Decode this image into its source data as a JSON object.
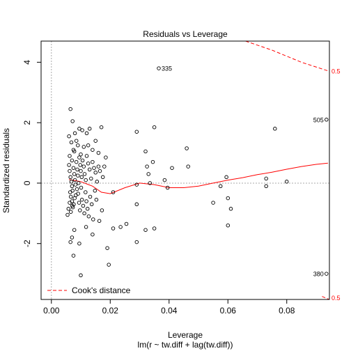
{
  "chart_data": {
    "type": "scatter",
    "title": "Residuals vs Leverage",
    "xlabel": "Leverage",
    "xlabel2": "lm(r ~ tw.diff + lag(tw.diff))",
    "ylabel": "Standardized residuals",
    "xlim": [
      -0.0035,
      0.0945
    ],
    "ylim": [
      -3.85,
      4.7
    ],
    "xticks": [
      0.0,
      0.02,
      0.04,
      0.06,
      0.08
    ],
    "xtick_labels": [
      "0.00",
      "0.02",
      "0.04",
      "0.06",
      "0.08"
    ],
    "yticks": [
      -2,
      0,
      2,
      4
    ],
    "ytick_labels": [
      "-2",
      "0",
      "2",
      "4"
    ],
    "grid": false,
    "legend": {
      "position": "bottom-left",
      "label": "Cook's distance"
    },
    "colors": {
      "points": "#000000",
      "smoother": "#ff0000",
      "cook": "#ff0000",
      "reference": "#aaaaaa"
    },
    "points": [
      [
        0.0065,
        2.45
      ],
      [
        0.006,
        1.55
      ],
      [
        0.0068,
        1.35
      ],
      [
        0.0072,
        2.05
      ],
      [
        0.008,
        1.65
      ],
      [
        0.0085,
        1.4
      ],
      [
        0.0075,
        1.1
      ],
      [
        0.0062,
        0.9
      ],
      [
        0.007,
        0.75
      ],
      [
        0.0078,
        1.05
      ],
      [
        0.009,
        1.25
      ],
      [
        0.0095,
        1.8
      ],
      [
        0.0105,
        1.75
      ],
      [
        0.011,
        1.2
      ],
      [
        0.01,
        0.95
      ],
      [
        0.012,
        1.65
      ],
      [
        0.013,
        1.8
      ],
      [
        0.0125,
        1.25
      ],
      [
        0.014,
        1.1
      ],
      [
        0.015,
        1.4
      ],
      [
        0.016,
        1.0
      ],
      [
        0.017,
        1.85
      ],
      [
        0.0185,
        0.85
      ],
      [
        0.016,
        0.55
      ],
      [
        0.006,
        0.6
      ],
      [
        0.0062,
        0.4
      ],
      [
        0.0065,
        0.2
      ],
      [
        0.0068,
        0.05
      ],
      [
        0.007,
        -0.1
      ],
      [
        0.0072,
        -0.25
      ],
      [
        0.0075,
        0.5
      ],
      [
        0.0078,
        0.3
      ],
      [
        0.008,
        0.1
      ],
      [
        0.0082,
        -0.05
      ],
      [
        0.0085,
        0.7
      ],
      [
        0.0088,
        0.45
      ],
      [
        0.009,
        0.25
      ],
      [
        0.0092,
        0.0
      ],
      [
        0.0095,
        0.85
      ],
      [
        0.0098,
        0.6
      ],
      [
        0.01,
        0.4
      ],
      [
        0.0103,
        0.2
      ],
      [
        0.0106,
        0.75
      ],
      [
        0.011,
        0.55
      ],
      [
        0.0113,
        0.3
      ],
      [
        0.0117,
        0.1
      ],
      [
        0.012,
        0.9
      ],
      [
        0.0125,
        0.65
      ],
      [
        0.013,
        0.45
      ],
      [
        0.0135,
        0.15
      ],
      [
        0.014,
        0.7
      ],
      [
        0.0145,
        0.5
      ],
      [
        0.015,
        0.35
      ],
      [
        0.0155,
        0.05
      ],
      [
        0.0165,
        0.4
      ],
      [
        0.0175,
        0.2
      ],
      [
        0.018,
        0.55
      ],
      [
        0.0064,
        -0.3
      ],
      [
        0.0066,
        -0.45
      ],
      [
        0.007,
        -0.6
      ],
      [
        0.0073,
        -0.8
      ],
      [
        0.0076,
        -0.7
      ],
      [
        0.0079,
        -0.5
      ],
      [
        0.0083,
        -0.4
      ],
      [
        0.0087,
        -0.2
      ],
      [
        0.0091,
        -0.35
      ],
      [
        0.0094,
        -0.65
      ],
      [
        0.0097,
        -0.9
      ],
      [
        0.0101,
        -0.15
      ],
      [
        0.0104,
        -0.55
      ],
      [
        0.0108,
        -0.75
      ],
      [
        0.0112,
        -1.0
      ],
      [
        0.0116,
        -0.3
      ],
      [
        0.0119,
        -0.6
      ],
      [
        0.0123,
        -0.85
      ],
      [
        0.0127,
        -1.1
      ],
      [
        0.0132,
        -0.45
      ],
      [
        0.0137,
        -0.7
      ],
      [
        0.0142,
        -1.2
      ],
      [
        0.0148,
        -0.25
      ],
      [
        0.0153,
        -0.55
      ],
      [
        0.0163,
        -1.25
      ],
      [
        0.0172,
        -0.9
      ],
      [
        0.0055,
        -1.05
      ],
      [
        0.0058,
        -0.85
      ],
      [
        0.0062,
        -0.65
      ],
      [
        0.0066,
        -0.95
      ],
      [
        0.0071,
        -0.75
      ],
      [
        0.0065,
        -1.95
      ],
      [
        0.007,
        -1.8
      ],
      [
        0.0075,
        -2.4
      ],
      [
        0.0078,
        -1.55
      ],
      [
        0.0095,
        -2.0
      ],
      [
        0.0118,
        -1.45
      ],
      [
        0.014,
        -1.7
      ],
      [
        0.01,
        -3.05
      ],
      [
        0.019,
        -2.15
      ],
      [
        0.0195,
        -2.7
      ],
      [
        0.021,
        -1.5
      ],
      [
        0.0235,
        -1.45
      ],
      [
        0.0255,
        -1.35
      ],
      [
        0.029,
        -1.95
      ],
      [
        0.021,
        -0.3
      ],
      [
        0.029,
        -0.05
      ],
      [
        0.029,
        -0.7
      ],
      [
        0.029,
        1.7
      ],
      [
        0.032,
        1.05
      ],
      [
        0.0325,
        0.55
      ],
      [
        0.033,
        0.3
      ],
      [
        0.0335,
        0.0
      ],
      [
        0.0345,
        0.7
      ],
      [
        0.035,
        1.85
      ],
      [
        0.032,
        -1.55
      ],
      [
        0.035,
        -1.5
      ],
      [
        0.0385,
        0.1
      ],
      [
        0.0395,
        -0.15
      ],
      [
        0.041,
        0.5
      ],
      [
        0.046,
        1.15
      ],
      [
        0.0465,
        0.55
      ],
      [
        0.055,
        -0.65
      ],
      [
        0.0575,
        -0.1
      ],
      [
        0.0595,
        0.2
      ],
      [
        0.06,
        -0.5
      ],
      [
        0.061,
        -0.85
      ],
      [
        0.06,
        -1.4
      ],
      [
        0.073,
        0.15
      ],
      [
        0.073,
        -0.1
      ],
      [
        0.076,
        1.8
      ],
      [
        0.08,
        0.05
      ],
      [
        0.0365,
        3.8
      ],
      [
        0.0935,
        2.1
      ],
      [
        0.0935,
        -3.0
      ]
    ],
    "labeled_points": [
      {
        "label": "335",
        "x": 0.0365,
        "y": 3.8
      },
      {
        "label": "505",
        "x": 0.0935,
        "y": 2.1
      },
      {
        "label": "380",
        "x": 0.0935,
        "y": -3.0
      }
    ],
    "smoother": [
      [
        0.006,
        0.12
      ],
      [
        0.01,
        0.05
      ],
      [
        0.014,
        -0.1
      ],
      [
        0.017,
        -0.3
      ],
      [
        0.02,
        -0.35
      ],
      [
        0.025,
        -0.15
      ],
      [
        0.03,
        0.0
      ],
      [
        0.035,
        -0.05
      ],
      [
        0.04,
        -0.15
      ],
      [
        0.045,
        -0.15
      ],
      [
        0.05,
        -0.1
      ],
      [
        0.055,
        0.0
      ],
      [
        0.06,
        0.1
      ],
      [
        0.065,
        0.18
      ],
      [
        0.07,
        0.28
      ],
      [
        0.075,
        0.36
      ],
      [
        0.08,
        0.46
      ],
      [
        0.085,
        0.55
      ],
      [
        0.09,
        0.62
      ],
      [
        0.094,
        0.66
      ]
    ],
    "cook_upper": [
      [
        0.066,
        4.7
      ],
      [
        0.075,
        4.4
      ],
      [
        0.085,
        4.0
      ],
      [
        0.0945,
        3.7
      ]
    ],
    "cook_lower": [
      [
        0.092,
        -3.75
      ],
      [
        0.0945,
        -3.85
      ]
    ],
    "cook_contour_labels": [
      {
        "text": "0.5",
        "y": 3.7
      },
      {
        "text": "0.5",
        "y": -3.8
      }
    ]
  }
}
